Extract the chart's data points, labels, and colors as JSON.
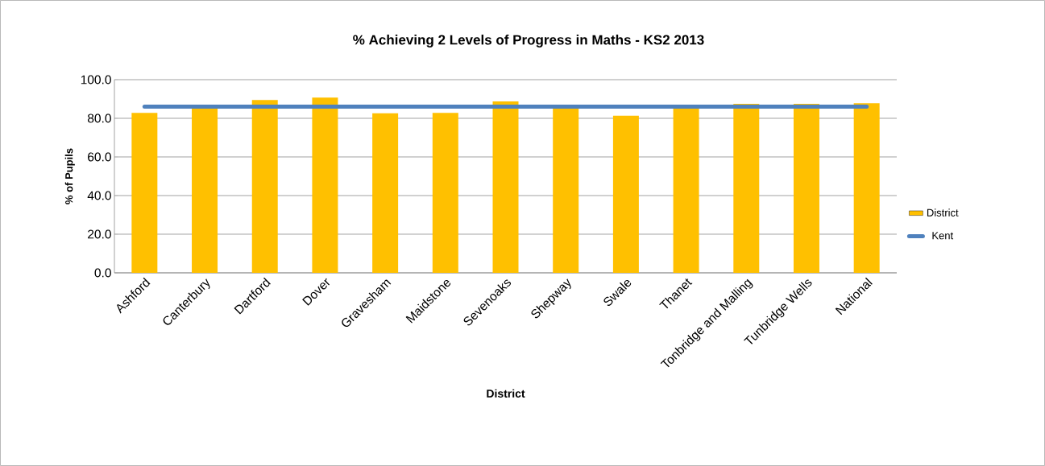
{
  "chart_data": {
    "type": "bar",
    "title": "% Achieving 2 Levels of Progress in Maths - KS2 2013",
    "xlabel": "District",
    "ylabel": "% of Pupils",
    "categories": [
      "Ashford",
      "Canterbury",
      "Dartford",
      "Dover",
      "Gravesham",
      "Maidstone",
      "Sevenoaks",
      "Shepway",
      "Swale",
      "Thanet",
      "Tonbridge and Malling",
      "Tunbridge Wells",
      "National"
    ],
    "series": [
      {
        "name": "District",
        "color": "#ffc000",
        "values": [
          82.8,
          85.5,
          89.5,
          90.7,
          82.6,
          82.8,
          88.7,
          85.5,
          81.4,
          85.5,
          87.5,
          87.5,
          87.8
        ]
      },
      {
        "name": "Kent",
        "type": "line",
        "color": "#4f81bd",
        "values": [
          86.0,
          86.0,
          86.0,
          86.0,
          86.0,
          86.0,
          86.0,
          86.0,
          86.0,
          86.0,
          86.0,
          86.0,
          86.0
        ]
      }
    ],
    "ylim": [
      0,
      100
    ],
    "yticks": [
      {
        "value": 0,
        "label": "0.0"
      },
      {
        "value": 20,
        "label": "20.0"
      },
      {
        "value": 40,
        "label": "40.0"
      },
      {
        "value": 60,
        "label": "60.0"
      },
      {
        "value": 80,
        "label": "80.0"
      },
      {
        "value": 100,
        "label": "100.0"
      }
    ],
    "grid": "y",
    "legend": "right",
    "marker": "none"
  }
}
